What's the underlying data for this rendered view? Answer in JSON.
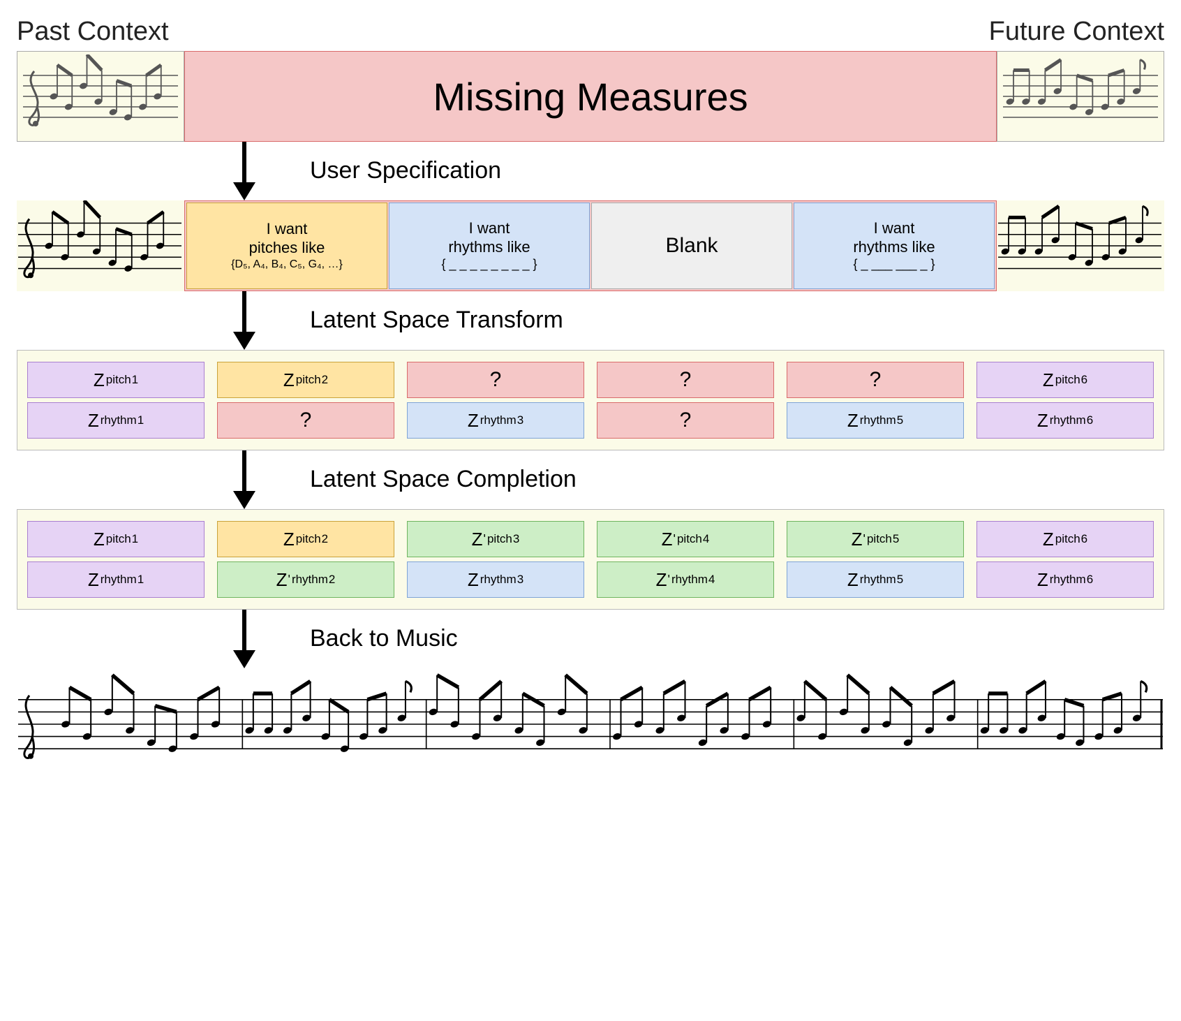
{
  "colors": {
    "panel_bg": "#fbfbe8",
    "red_fill": "#f5c7c7",
    "red_border": "#d96a6a",
    "yellow_fill": "#ffe4a3",
    "yellow_border": "#caa23a",
    "blue_fill": "#d4e3f7",
    "blue_border": "#7fa4d6",
    "grey_fill": "#efefef",
    "grey_border": "#aaaaaa",
    "purple_fill": "#e6d3f5",
    "purple_border": "#a97fd0",
    "green_fill": "#cdeec6",
    "green_border": "#6fb55f",
    "text": "#222222"
  },
  "typography": {
    "header_fontsize": 38,
    "missing_fontsize": 56,
    "step_fontsize": 34,
    "spec_fontsize": 22,
    "blank_fontsize": 30,
    "z_fontsize": 26
  },
  "header": {
    "past": "Past Context",
    "future": "Future Context"
  },
  "row1": {
    "missing_label": "Missing Measures"
  },
  "steps": {
    "s1": "User Specification",
    "s2": "Latent Space Transform",
    "s3": "Latent Space Completion",
    "s4": "Back to Music"
  },
  "spec": {
    "pitch_line1": "I want",
    "pitch_line2": "pitches like",
    "pitch_set": "{D₅, A₄, B₄, C₅, G₄, …}",
    "rhythm1_line1": "I want",
    "rhythm1_line2": "rhythms like",
    "rhythm1_pat": "{ _ _ _ _ _ _ _ _ }",
    "blank": "Blank",
    "rhythm2_line1": "I want",
    "rhythm2_line2": "rhythms like",
    "rhythm2_pat": "{ _ ___ ___ _ }"
  },
  "latent_transform": {
    "columns": 6,
    "pitch_row": [
      {
        "label": "Z",
        "sub": "pitch",
        "sup": "1",
        "color": "purple"
      },
      {
        "label": "Z",
        "sub": "pitch",
        "sup": "2",
        "color": "yellow"
      },
      {
        "label": "?",
        "color": "red"
      },
      {
        "label": "?",
        "color": "red"
      },
      {
        "label": "?",
        "color": "red"
      },
      {
        "label": "Z",
        "sub": "pitch",
        "sup": "6",
        "color": "purple"
      }
    ],
    "rhythm_row": [
      {
        "label": "Z",
        "sub": "rhythm",
        "sup": "1",
        "color": "purple"
      },
      {
        "label": "?",
        "color": "red"
      },
      {
        "label": "Z",
        "sub": "rhythm",
        "sup": "3",
        "color": "blue"
      },
      {
        "label": "?",
        "color": "red"
      },
      {
        "label": "Z",
        "sub": "rhythm",
        "sup": "5",
        "color": "blue"
      },
      {
        "label": "Z",
        "sub": "rhythm",
        "sup": "6",
        "color": "purple"
      }
    ]
  },
  "latent_complete": {
    "columns": 6,
    "pitch_row": [
      {
        "label": "Z",
        "sub": "pitch",
        "sup": "1",
        "color": "purple"
      },
      {
        "label": "Z",
        "sub": "pitch",
        "sup": "2",
        "color": "yellow"
      },
      {
        "label": "Z'",
        "sub": "pitch",
        "sup": "3",
        "color": "green"
      },
      {
        "label": "Z'",
        "sub": "pitch",
        "sup": "4",
        "color": "green"
      },
      {
        "label": "Z'",
        "sub": "pitch",
        "sup": "5",
        "color": "green"
      },
      {
        "label": "Z",
        "sub": "pitch",
        "sup": "6",
        "color": "purple"
      }
    ],
    "rhythm_row": [
      {
        "label": "Z",
        "sub": "rhythm",
        "sup": "1",
        "color": "purple"
      },
      {
        "label": "Z'",
        "sub": "rhythm",
        "sup": "2",
        "color": "green"
      },
      {
        "label": "Z",
        "sub": "rhythm",
        "sup": "3",
        "color": "blue"
      },
      {
        "label": "Z'",
        "sub": "rhythm",
        "sup": "4",
        "color": "green"
      },
      {
        "label": "Z",
        "sub": "rhythm",
        "sup": "5",
        "color": "blue"
      },
      {
        "label": "Z",
        "sub": "rhythm",
        "sup": "6",
        "color": "purple"
      }
    ]
  },
  "staff": {
    "motif_past": {
      "note_color": "#555555",
      "notes": [
        4,
        2,
        6,
        3,
        1,
        0,
        2,
        4
      ]
    },
    "motif_future": {
      "note_color": "#555555",
      "notes": [
        3,
        3,
        3,
        5,
        2,
        1,
        2,
        3,
        5
      ]
    },
    "row2_past": {
      "note_color": "#000000",
      "notes": [
        4,
        2,
        6,
        3,
        1,
        0,
        2,
        4
      ]
    },
    "row2_future": {
      "note_color": "#000000",
      "notes": [
        3,
        3,
        3,
        5,
        2,
        1,
        2,
        3,
        5
      ]
    },
    "full": {
      "note_color": "#000000",
      "measures": [
        [
          4,
          2,
          6,
          3,
          1,
          0,
          2,
          4
        ],
        [
          3,
          3,
          3,
          5,
          2,
          0,
          2,
          3,
          5
        ],
        [
          6,
          4,
          2,
          5,
          3,
          1,
          6,
          3
        ],
        [
          2,
          4,
          3,
          5,
          1,
          3,
          2,
          4
        ],
        [
          5,
          2,
          6,
          3,
          4,
          1,
          3,
          5
        ],
        [
          3,
          3,
          3,
          5,
          2,
          1,
          2,
          3,
          5
        ]
      ]
    }
  }
}
